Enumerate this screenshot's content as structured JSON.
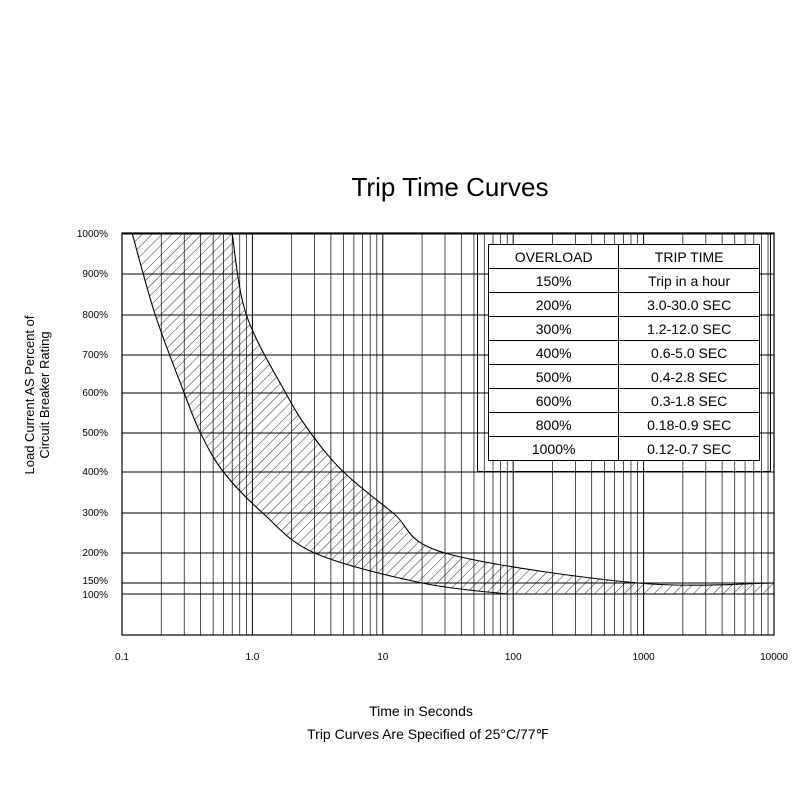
{
  "chart_data": {
    "type": "area",
    "title": "Trip Time Curves",
    "xlabel": "Time in Seconds",
    "ylabel_line1": "Load Current AS Percent of",
    "ylabel_line2": "Circuit Breaker Rating",
    "note": "Trip Curves Are Specified of 25°C/77℉",
    "x_scale": "log",
    "xlim": [
      0.1,
      10000
    ],
    "x_ticks": [
      0.1,
      1,
      10,
      100,
      1000,
      10000
    ],
    "x_tick_labels": [
      "0.1",
      "1.0",
      "10",
      "100",
      "1000",
      "10000"
    ],
    "y_ticks": [
      100,
      150,
      200,
      300,
      400,
      500,
      600,
      700,
      800,
      900,
      1000
    ],
    "y_tick_labels": [
      "100%",
      "150%",
      "200%",
      "300%",
      "400%",
      "500%",
      "600%",
      "700%",
      "800%",
      "900%",
      "1000%"
    ],
    "grid": true,
    "band": {
      "lower": [
        {
          "x": 0.12,
          "y": 1000
        },
        {
          "x": 0.18,
          "y": 800
        },
        {
          "x": 0.3,
          "y": 600
        },
        {
          "x": 0.4,
          "y": 500
        },
        {
          "x": 0.6,
          "y": 400
        },
        {
          "x": 1.2,
          "y": 300
        },
        {
          "x": 3.0,
          "y": 200
        },
        {
          "x": 20,
          "y": 150
        },
        {
          "x": 90,
          "y": 100
        }
      ],
      "upper": [
        {
          "x": 0.7,
          "y": 1000
        },
        {
          "x": 0.9,
          "y": 800
        },
        {
          "x": 1.8,
          "y": 600
        },
        {
          "x": 2.8,
          "y": 500
        },
        {
          "x": 5.0,
          "y": 400
        },
        {
          "x": 12,
          "y": 300
        },
        {
          "x": 30,
          "y": 200
        },
        {
          "x": 900,
          "y": 150
        },
        {
          "x": 10000,
          "y": 150
        }
      ],
      "tail_lower": [
        {
          "x": 90,
          "y": 100
        },
        {
          "x": 10000,
          "y": 100
        }
      ]
    }
  },
  "table": {
    "headers": [
      "OVERLOAD",
      "TRIP TIME"
    ],
    "rows": [
      [
        "150%",
        "Trip in a hour"
      ],
      [
        "200%",
        "3.0-30.0 SEC"
      ],
      [
        "300%",
        "1.2-12.0 SEC"
      ],
      [
        "400%",
        "0.6-5.0 SEC"
      ],
      [
        "500%",
        "0.4-2.8 SEC"
      ],
      [
        "600%",
        "0.3-1.8 SEC"
      ],
      [
        "800%",
        "0.18-0.9 SEC"
      ],
      [
        "1000%",
        "0.12-0.7 SEC"
      ]
    ]
  }
}
